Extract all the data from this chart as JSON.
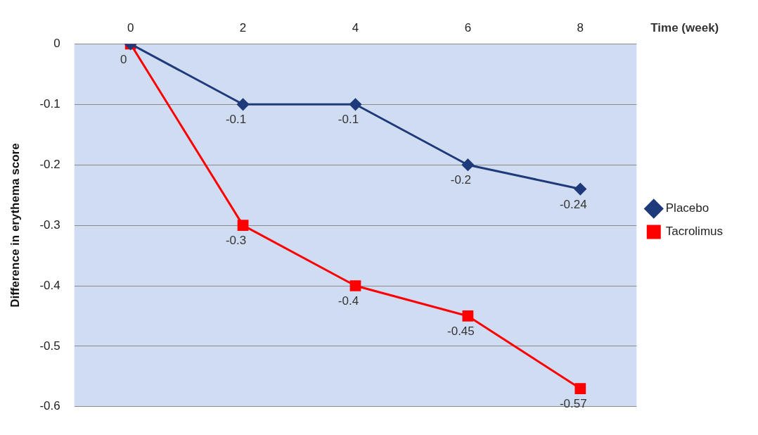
{
  "chart_data": {
    "type": "line",
    "categories": [
      "0",
      "2",
      "4",
      "6",
      "8"
    ],
    "xlabel": "Time (week)",
    "ylabel": "Difference in erythema score",
    "ylim": [
      -0.6,
      0
    ],
    "yticks": [
      -0.6,
      -0.5,
      -0.4,
      -0.3,
      -0.2,
      -0.1,
      0
    ],
    "grid": "y",
    "legend": "right",
    "series": [
      {
        "name": "Placebo",
        "color": "#1f3a7a",
        "marker": "diamond",
        "values": [
          0,
          -0.1,
          -0.1,
          -0.2,
          -0.24
        ],
        "value_labels": [
          null,
          "-0.1",
          "-0.1",
          "-0.2",
          "-0.24"
        ]
      },
      {
        "name": "Tacrolimus",
        "color": "#ff0000",
        "marker": "square",
        "values": [
          0,
          -0.3,
          -0.4,
          -0.45,
          -0.57
        ],
        "value_labels": [
          "0",
          "-0.3",
          "-0.4",
          "-0.45",
          "-0.57"
        ]
      }
    ]
  }
}
